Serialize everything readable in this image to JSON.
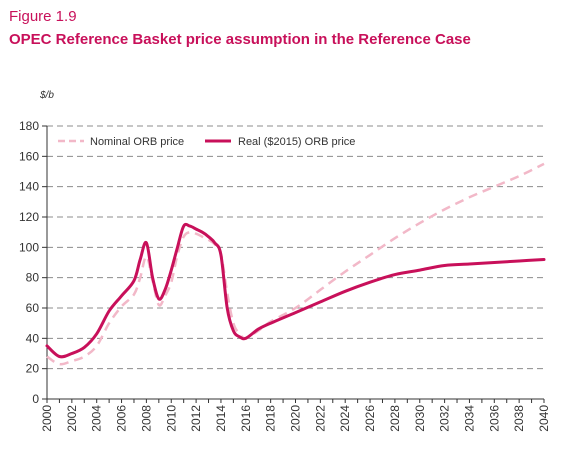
{
  "figure": {
    "label": "Figure 1.9",
    "title": "OPEC Reference Basket price assumption in the Reference Case"
  },
  "colors": {
    "title": "#c8105a",
    "real": "#c8105a",
    "nominal": "#f2b8c8",
    "axis": "#333333",
    "grid": "#8c8c8c"
  },
  "chart_data": {
    "type": "line",
    "ylabel": "$/b",
    "xlim": [
      2000,
      2040
    ],
    "ylim": [
      0,
      180
    ],
    "yticks": [
      0,
      20,
      40,
      60,
      80,
      100,
      120,
      140,
      160,
      180
    ],
    "xticks": [
      2000,
      2002,
      2004,
      2006,
      2008,
      2010,
      2012,
      2014,
      2016,
      2018,
      2020,
      2022,
      2024,
      2026,
      2028,
      2030,
      2032,
      2034,
      2036,
      2038,
      2040
    ],
    "grid": true,
    "legend_position": "top-left",
    "series": [
      {
        "name": "Nominal ORB price",
        "style": "dashed",
        "x": [
          2000,
          2001,
          2002,
          2003,
          2004,
          2005,
          2006,
          2007,
          2007.5,
          2008,
          2008.5,
          2009,
          2009.5,
          2010,
          2010.5,
          2011,
          2011.5,
          2012,
          2012.5,
          2013,
          2013.5,
          2014,
          2014.5,
          2015,
          2015.5,
          2016,
          2017,
          2018,
          2020,
          2022,
          2024,
          2026,
          2028,
          2030,
          2032,
          2034,
          2036,
          2038,
          2040
        ],
        "y": [
          28,
          23,
          25,
          28,
          35,
          50,
          61,
          69,
          80,
          94,
          78,
          62,
          68,
          77,
          95,
          107,
          110,
          109,
          107,
          105,
          102,
          96,
          70,
          50,
          43,
          40,
          45,
          51,
          60,
          72,
          84,
          95,
          106,
          116,
          125,
          133,
          140,
          147,
          155
        ]
      },
      {
        "name": "Real ($2015) ORB price",
        "style": "solid",
        "x": [
          2000,
          2001,
          2002,
          2003,
          2004,
          2005,
          2006,
          2007,
          2007.5,
          2008,
          2008.5,
          2009,
          2009.5,
          2010,
          2010.5,
          2011,
          2011.5,
          2012,
          2012.5,
          2013,
          2013.5,
          2014,
          2014.5,
          2015,
          2015.5,
          2016,
          2017,
          2018,
          2020,
          2022,
          2024,
          2026,
          2028,
          2030,
          2032,
          2034,
          2036,
          2038,
          2040
        ],
        "y": [
          35,
          28,
          30,
          34,
          43,
          58,
          68,
          78,
          92,
          103,
          80,
          66,
          72,
          85,
          100,
          114,
          114,
          112,
          110,
          107,
          103,
          95,
          60,
          45,
          41,
          40,
          46,
          50,
          57,
          64,
          71,
          77,
          82,
          85,
          88,
          89,
          90,
          91,
          92
        ]
      }
    ]
  }
}
